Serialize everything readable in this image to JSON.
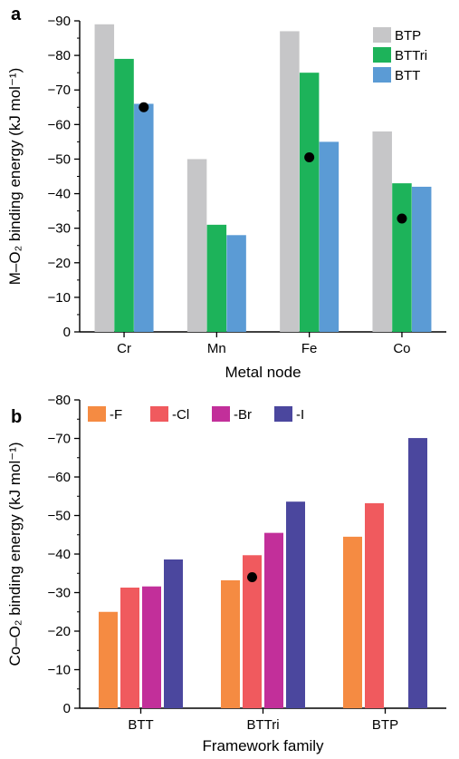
{
  "chart_data": [
    {
      "panel": "a",
      "type": "bar",
      "xlabel": "Metal node",
      "ylabel": "M–O₂ binding energy (kJ mol⁻¹)",
      "ylim": [
        0,
        -90
      ],
      "yticks": [
        0,
        -10,
        -20,
        -30,
        -40,
        -50,
        -60,
        -70,
        -80,
        -90
      ],
      "ytick_labels": [
        "0",
        "−10",
        "−20",
        "−30",
        "−40",
        "−50",
        "−60",
        "−70",
        "−80",
        "−90"
      ],
      "categories": [
        "Cr",
        "Mn",
        "Fe",
        "Co"
      ],
      "series": [
        {
          "name": "BTP",
          "color": "#c6c6c8",
          "values": [
            -89,
            -50,
            -87,
            -58
          ]
        },
        {
          "name": "BTTri",
          "color": "#1db35a",
          "values": [
            -79,
            -31,
            -75,
            -43
          ]
        },
        {
          "name": "BTT",
          "color": "#5b9bd5",
          "values": [
            -66,
            -28,
            -55,
            -42
          ]
        }
      ],
      "markers": [
        {
          "category": "Cr",
          "series": "BTT",
          "value": -65
        },
        {
          "category": "Fe",
          "series": "BTTri",
          "value": -50.5
        },
        {
          "category": "Co",
          "series": "BTTri",
          "value": -32.8
        }
      ],
      "marker_color": "#000000",
      "legend_position": "top-right",
      "grid": false
    },
    {
      "panel": "b",
      "type": "bar",
      "xlabel": "Framework family",
      "ylabel": "Co–O₂ binding energy (kJ mol⁻¹)",
      "ylim": [
        0,
        -80
      ],
      "yticks": [
        0,
        -10,
        -20,
        -30,
        -40,
        -50,
        -60,
        -70,
        -80
      ],
      "ytick_labels": [
        "0",
        "−10",
        "−20",
        "−30",
        "−40",
        "−50",
        "−60",
        "−70",
        "−80"
      ],
      "categories": [
        "BTT",
        "BTTri",
        "BTP"
      ],
      "series": [
        {
          "name": "-F",
          "color": "#f58b42",
          "values": [
            -25,
            -33.2,
            -44.5
          ]
        },
        {
          "name": "-Cl",
          "color": "#f05a5e",
          "values": [
            -31.3,
            -39.7,
            -53.2
          ]
        },
        {
          "name": "-Br",
          "color": "#c22f9a",
          "values": [
            -31.6,
            -45.5,
            null
          ]
        },
        {
          "name": "-I",
          "color": "#4b479e",
          "values": [
            -38.6,
            -53.6,
            -70.1
          ]
        }
      ],
      "markers": [
        {
          "category": "BTTri",
          "series": "-Cl",
          "value": -34
        }
      ],
      "marker_color": "#000000",
      "legend_position": "top-left",
      "grid": false
    }
  ]
}
